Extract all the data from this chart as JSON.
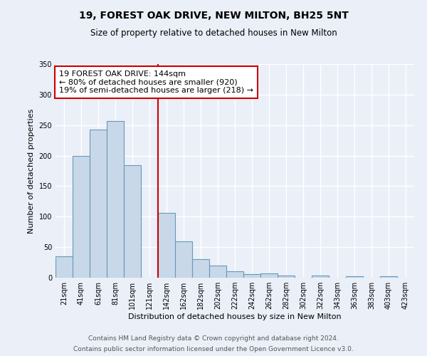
{
  "title": "19, FOREST OAK DRIVE, NEW MILTON, BH25 5NT",
  "subtitle": "Size of property relative to detached houses in New Milton",
  "xlabel": "Distribution of detached houses by size in New Milton",
  "ylabel": "Number of detached properties",
  "categories": [
    "21sqm",
    "41sqm",
    "61sqm",
    "81sqm",
    "101sqm",
    "121sqm",
    "142sqm",
    "162sqm",
    "182sqm",
    "202sqm",
    "222sqm",
    "242sqm",
    "262sqm",
    "282sqm",
    "302sqm",
    "322sqm",
    "343sqm",
    "363sqm",
    "383sqm",
    "403sqm",
    "423sqm"
  ],
  "values": [
    35,
    199,
    243,
    257,
    184,
    0,
    106,
    60,
    30,
    20,
    10,
    6,
    7,
    4,
    0,
    4,
    0,
    2,
    0,
    2,
    0
  ],
  "bar_color": "#c8d8e8",
  "bar_edge_color": "#6699bb",
  "vline_color": "#cc0000",
  "vline_index": 6,
  "annotation_text": "19 FOREST OAK DRIVE: 144sqm\n← 80% of detached houses are smaller (920)\n19% of semi-detached houses are larger (218) →",
  "annotation_box_edge_color": "#cc0000",
  "ylim": [
    0,
    350
  ],
  "yticks": [
    0,
    50,
    100,
    150,
    200,
    250,
    300,
    350
  ],
  "footer_line1": "Contains HM Land Registry data © Crown copyright and database right 2024.",
  "footer_line2": "Contains public sector information licensed under the Open Government Licence v3.0.",
  "bg_color": "#eaeff8",
  "plot_bg_color": "#eaeff8",
  "grid_color": "#ffffff",
  "title_fontsize": 10,
  "subtitle_fontsize": 8.5,
  "xlabel_fontsize": 8,
  "ylabel_fontsize": 8,
  "tick_fontsize": 7,
  "footer_fontsize": 6.5,
  "annotation_fontsize": 8
}
